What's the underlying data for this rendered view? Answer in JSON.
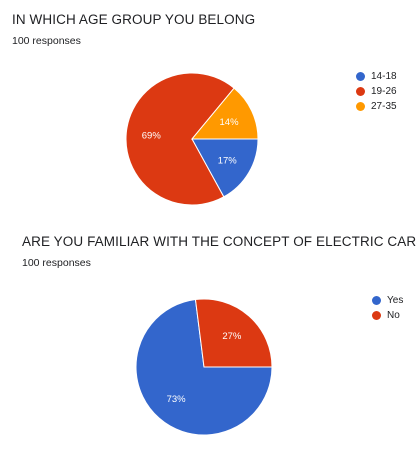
{
  "chart_data": [
    {
      "type": "pie",
      "title": "IN WHICH AGE GROUP YOU BELONG",
      "subtitle": "100 responses",
      "categories": [
        "14-18",
        "19-26",
        "27-35"
      ],
      "values": [
        17,
        69,
        14
      ],
      "value_labels": [
        "17%",
        "69%",
        "14%"
      ],
      "colors": [
        "#3366cc",
        "#dc3912",
        "#ff9900"
      ],
      "legend_position": "right"
    },
    {
      "type": "pie",
      "title": "ARE YOU FAMILIAR WITH THE CONCEPT OF ELECTRIC CARS?",
      "subtitle": "100 responses",
      "categories": [
        "Yes",
        "No"
      ],
      "values": [
        73,
        27
      ],
      "value_labels": [
        "73%",
        "27%"
      ],
      "colors": [
        "#3366cc",
        "#dc3912"
      ],
      "legend_position": "right"
    }
  ]
}
